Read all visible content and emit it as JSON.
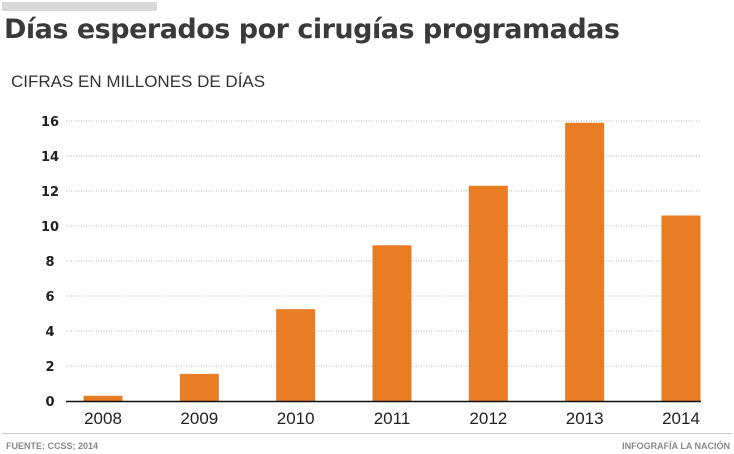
{
  "header": {
    "title": "Días esperados por cirugías programadas",
    "subtitle": "CIFRAS EN  MILLONES DE DÍAS"
  },
  "footer": {
    "source": "FUENTE: CCSS; 2014",
    "credit": "INFOGRAFÍA LA NACIÓN"
  },
  "colors": {
    "bar": "#e87d23",
    "grid": "#b5b5b5",
    "axis": "#111111"
  },
  "chart_data": {
    "type": "bar",
    "title": "Días esperados por cirugías programadas",
    "subtitle": "CIFRAS EN  MILLONES DE DÍAS",
    "xlabel": "",
    "ylabel": "Millones de días",
    "categories": [
      "2008",
      "2009",
      "2010",
      "2011",
      "2012",
      "2013",
      "2014"
    ],
    "values": [
      0.3,
      1.55,
      5.25,
      8.9,
      12.3,
      15.9,
      10.6
    ],
    "ylim": [
      0,
      16
    ],
    "yticks": [
      0,
      2,
      4,
      6,
      8,
      10,
      12,
      14,
      16
    ],
    "grid": true,
    "legend": "none"
  }
}
